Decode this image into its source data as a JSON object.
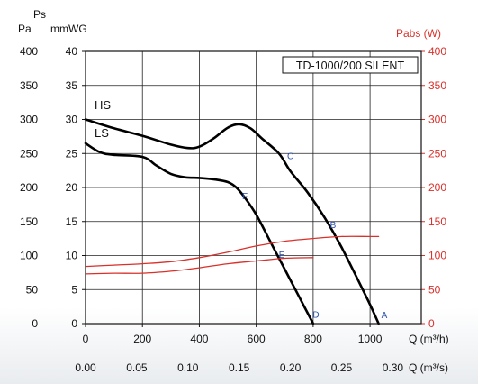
{
  "chart_data": {
    "type": "line",
    "title": "TD-1000/200 SILENT",
    "left_axis": {
      "unit_pa": "Pa",
      "unit_mmwg": "mmWG",
      "label_ps": "Ps",
      "pa_ticks": [
        "0",
        "50",
        "100",
        "150",
        "200",
        "250",
        "300",
        "350",
        "400"
      ],
      "mmwg_ticks": [
        "0",
        "5",
        "10",
        "15",
        "20",
        "25",
        "30",
        "35",
        "40"
      ],
      "ylim": [
        0,
        400
      ]
    },
    "right_axis": {
      "label": "Pabs (W)",
      "ticks": [
        "0",
        "50",
        "100",
        "150",
        "200",
        "250",
        "300",
        "350",
        "400"
      ],
      "ylim": [
        0,
        400
      ]
    },
    "x_axis_m3h": {
      "label": "Q (m³/h)",
      "ticks": [
        "0",
        "200",
        "400",
        "600",
        "800",
        "1000"
      ],
      "xlim": [
        0,
        1180
      ]
    },
    "x_axis_m3s": {
      "label": "Q (m³/s)",
      "ticks": [
        "0.00",
        "0.05",
        "0.10",
        "0.15",
        "0.20",
        "0.25",
        "0.30"
      ]
    },
    "series": [
      {
        "name": "HS",
        "axis": "pressure",
        "color": "#000000",
        "x": [
          0,
          100,
          200,
          300,
          360,
          400,
          450,
          500,
          540,
          580,
          620,
          680,
          720,
          780,
          840,
          900,
          960,
          1000,
          1030
        ],
        "y": [
          300,
          287,
          276,
          263,
          258,
          260,
          272,
          288,
          293,
          287,
          272,
          250,
          224,
          193,
          156,
          112,
          62,
          28,
          0
        ]
      },
      {
        "name": "LS",
        "axis": "pressure",
        "color": "#000000",
        "x": [
          0,
          50,
          100,
          200,
          250,
          300,
          350,
          400,
          450,
          500,
          530,
          560,
          600,
          650,
          700,
          750,
          800
        ],
        "y": [
          265,
          252,
          248,
          245,
          232,
          220,
          215,
          214,
          212,
          208,
          200,
          185,
          160,
          120,
          80,
          40,
          0
        ]
      },
      {
        "name": "",
        "axis": "power",
        "color": "#d9302a",
        "x": [
          0,
          100,
          200,
          300,
          400,
          500,
          600,
          700,
          800,
          900,
          1000,
          1030
        ],
        "y": [
          84,
          86,
          88,
          91,
          97,
          105,
          114,
          121,
          125,
          128,
          128,
          128
        ]
      },
      {
        "name": "",
        "axis": "power",
        "color": "#d9302a",
        "x": [
          0,
          100,
          200,
          300,
          400,
          500,
          600,
          700,
          800
        ],
        "y": [
          73,
          74,
          74,
          77,
          82,
          88,
          92,
          96,
          97
        ]
      }
    ],
    "markers": [
      {
        "label": "A",
        "x": 1050,
        "y": 13
      },
      {
        "label": "B",
        "x": 870,
        "y": 146
      },
      {
        "label": "C",
        "x": 720,
        "y": 247
      },
      {
        "label": "D",
        "x": 810,
        "y": 14
      },
      {
        "label": "E",
        "x": 690,
        "y": 102
      },
      {
        "label": "F",
        "x": 560,
        "y": 188
      }
    ],
    "grid": true
  },
  "colors": {
    "red": "#d9302a",
    "marker": "#2a4fa8",
    "black": "#000000"
  }
}
